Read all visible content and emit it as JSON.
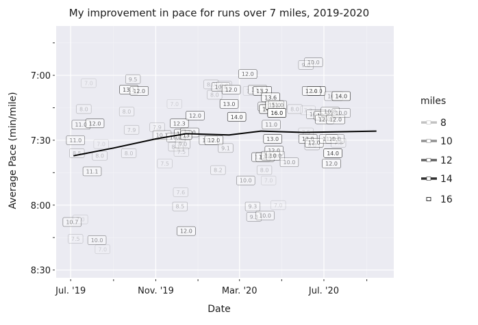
{
  "chart_data": {
    "type": "scatter",
    "title": "My improvement in pace for runs over 7 miles, 2019-2020",
    "xlabel": "Date",
    "ylabel": "Average Pace (min/mile)",
    "x_ticks": [
      {
        "date": "2019-07-01",
        "label": "Jul. '19"
      },
      {
        "date": "2019-11-01",
        "label": "Nov. '19"
      },
      {
        "date": "2020-03-01",
        "label": "Mar. '20"
      },
      {
        "date": "2020-07-01",
        "label": "Jul. '20"
      }
    ],
    "x_minor_ticks": [
      "2019-09-01",
      "2020-01-01",
      "2020-05-01",
      "2020-09-01"
    ],
    "xlim": [
      "2019-06-10",
      "2020-10-10"
    ],
    "y_ticks": [
      {
        "value": 7.0,
        "label": "7:00"
      },
      {
        "value": 7.5,
        "label": "7:30"
      },
      {
        "value": 8.0,
        "label": "8:00"
      },
      {
        "value": 8.5,
        "label": "8:30"
      }
    ],
    "y_minor_ticks": [
      6.75,
      7.25,
      7.75,
      8.25
    ],
    "ylim": [
      8.56,
      6.62
    ],
    "y_reversed": true,
    "grid": true,
    "legend": {
      "title": "miles",
      "position": "right",
      "entries": [
        {
          "label": "8",
          "value": 8
        },
        {
          "label": "10",
          "value": 10
        },
        {
          "label": "12",
          "value": 12
        },
        {
          "label": "14",
          "value": 14
        },
        {
          "label": "16",
          "value": 16
        }
      ]
    },
    "trend_line": [
      {
        "date": "2019-07-05",
        "pace": 7.62
      },
      {
        "date": "2019-09-01",
        "pace": 7.56
      },
      {
        "date": "2019-11-01",
        "pace": 7.49
      },
      {
        "date": "2019-12-15",
        "pace": 7.45
      },
      {
        "date": "2020-02-15",
        "pace": 7.46
      },
      {
        "date": "2020-04-01",
        "pace": 7.43
      },
      {
        "date": "2020-06-01",
        "pace": 7.44
      },
      {
        "date": "2020-09-15",
        "pace": 7.43
      }
    ],
    "points": [
      {
        "date": "2019-07-08",
        "pace": 7.5,
        "miles": 11.0,
        "label": "11.0"
      },
      {
        "date": "2019-07-10",
        "pace": 7.6,
        "miles": 8.5,
        "label": "8.5"
      },
      {
        "date": "2019-07-16",
        "pace": 7.38,
        "miles": 11.0,
        "label": "11.0"
      },
      {
        "date": "2019-07-20",
        "pace": 7.26,
        "miles": 8.0,
        "label": "8.0"
      },
      {
        "date": "2019-07-27",
        "pace": 7.06,
        "miles": 7.0,
        "label": "7.0"
      },
      {
        "date": "2019-08-05",
        "pace": 7.37,
        "miles": 12.0,
        "label": "12.0"
      },
      {
        "date": "2019-08-01",
        "pace": 7.74,
        "miles": 11.1,
        "label": "11.1"
      },
      {
        "date": "2019-08-12",
        "pace": 7.62,
        "miles": 8.0,
        "label": "8.0"
      },
      {
        "date": "2019-08-14",
        "pace": 7.53,
        "miles": 7.0,
        "label": "7.0"
      },
      {
        "date": "2019-07-03",
        "pace": 8.13,
        "miles": 10.7,
        "label": "10.7"
      },
      {
        "date": "2019-07-08",
        "pace": 8.26,
        "miles": 7.5,
        "label": "7.5"
      },
      {
        "date": "2019-07-15",
        "pace": 8.11,
        "miles": 7.0,
        "label": "7.0"
      },
      {
        "date": "2019-08-08",
        "pace": 8.27,
        "miles": 10.0,
        "label": "10.0"
      },
      {
        "date": "2019-08-16",
        "pace": 8.34,
        "miles": 7.0,
        "label": "7.0"
      },
      {
        "date": "2019-09-23",
        "pace": 7.11,
        "miles": 13.1,
        "label": "13.1"
      },
      {
        "date": "2019-09-29",
        "pace": 7.03,
        "miles": 9.5,
        "label": "9.5"
      },
      {
        "date": "2019-10-08",
        "pace": 7.12,
        "miles": 12.0,
        "label": "12.0"
      },
      {
        "date": "2019-09-20",
        "pace": 7.28,
        "miles": 8.0,
        "label": "8.0"
      },
      {
        "date": "2019-09-27",
        "pace": 7.42,
        "miles": 7.9,
        "label": "7.9"
      },
      {
        "date": "2019-09-23",
        "pace": 7.6,
        "miles": 8.0,
        "label": "8.0"
      },
      {
        "date": "2019-11-03",
        "pace": 7.4,
        "miles": 7.9,
        "label": "7.9"
      },
      {
        "date": "2019-11-10",
        "pace": 7.46,
        "miles": 10.1,
        "label": "10.1"
      },
      {
        "date": "2019-11-14",
        "pace": 7.68,
        "miles": 7.5,
        "label": "7.5"
      },
      {
        "date": "2019-11-28",
        "pace": 7.22,
        "miles": 7.0,
        "label": "7.0"
      },
      {
        "date": "2019-12-05",
        "pace": 7.37,
        "miles": 12.3,
        "label": "12.3"
      },
      {
        "date": "2019-12-06",
        "pace": 7.45,
        "miles": 13.0,
        "label": "13"
      },
      {
        "date": "2019-11-30",
        "pace": 7.48,
        "miles": 10.0,
        "label": "10.0"
      },
      {
        "date": "2019-11-30",
        "pace": 7.55,
        "miles": 8.1,
        "label": "8.1"
      },
      {
        "date": "2019-12-10",
        "pace": 7.53,
        "miles": 9.0,
        "label": "9.0"
      },
      {
        "date": "2019-12-08",
        "pace": 7.59,
        "miles": 7.5,
        "label": "7.5"
      },
      {
        "date": "2019-12-20",
        "pace": 7.44,
        "miles": 12.0,
        "label": "12.0"
      },
      {
        "date": "2019-12-28",
        "pace": 7.31,
        "miles": 12.0,
        "label": "12.0"
      },
      {
        "date": "2019-12-15",
        "pace": 7.46,
        "miles": 13.0,
        "label": "13"
      },
      {
        "date": "2019-12-07",
        "pace": 7.9,
        "miles": 7.6,
        "label": "7.6"
      },
      {
        "date": "2019-12-06",
        "pace": 8.01,
        "miles": 8.5,
        "label": "8.5"
      },
      {
        "date": "2019-12-15",
        "pace": 8.2,
        "miles": 12.0,
        "label": "12.0"
      },
      {
        "date": "2020-01-16",
        "pace": 7.5,
        "miles": 11.0,
        "label": "11.0"
      },
      {
        "date": "2020-01-24",
        "pace": 7.5,
        "miles": 12.0,
        "label": "12.0"
      },
      {
        "date": "2020-01-20",
        "pace": 7.07,
        "miles": 8.0,
        "label": "8.0"
      },
      {
        "date": "2020-01-25",
        "pace": 7.15,
        "miles": 8.0,
        "label": "8.0"
      },
      {
        "date": "2020-02-03",
        "pace": 7.09,
        "miles": 10.8,
        "label": "10.8"
      },
      {
        "date": "2020-02-08",
        "pace": 7.08,
        "miles": 8.0,
        "label": "8.0"
      },
      {
        "date": "2020-02-18",
        "pace": 7.11,
        "miles": 12.0,
        "label": "12.0"
      },
      {
        "date": "2020-02-15",
        "pace": 7.22,
        "miles": 13.0,
        "label": "13.0"
      },
      {
        "date": "2020-02-10",
        "pace": 7.56,
        "miles": 9.1,
        "label": "9.1"
      },
      {
        "date": "2020-01-30",
        "pace": 7.73,
        "miles": 8.2,
        "label": "8.2"
      },
      {
        "date": "2020-02-26",
        "pace": 7.32,
        "miles": 14.0,
        "label": "14.0"
      },
      {
        "date": "2020-03-13",
        "pace": 6.99,
        "miles": 12.0,
        "label": "12.0"
      },
      {
        "date": "2020-03-10",
        "pace": 7.81,
        "miles": 10.0,
        "label": "10.0"
      },
      {
        "date": "2020-03-17",
        "pace": 7.12,
        "miles": 7.0,
        "label": "7.0"
      },
      {
        "date": "2020-03-27",
        "pace": 7.11,
        "miles": 11.0,
        "label": "11.0"
      },
      {
        "date": "2020-04-03",
        "pace": 7.12,
        "miles": 13.2,
        "label": "13.2"
      },
      {
        "date": "2020-03-20",
        "pace": 8.01,
        "miles": 9.3,
        "label": "9.3"
      },
      {
        "date": "2020-03-22",
        "pace": 8.09,
        "miles": 9.3,
        "label": "9.3"
      },
      {
        "date": "2020-04-01",
        "pace": 7.63,
        "miles": 12.0,
        "label": "12.0"
      },
      {
        "date": "2020-04-07",
        "pace": 7.63,
        "miles": 12.0,
        "label": "12.0"
      },
      {
        "date": "2020-04-06",
        "pace": 7.73,
        "miles": 8.0,
        "label": "8.0"
      },
      {
        "date": "2020-04-12",
        "pace": 7.81,
        "miles": 7.0,
        "label": "7.0"
      },
      {
        "date": "2020-04-07",
        "pace": 8.08,
        "miles": 10.0,
        "label": "10.0"
      },
      {
        "date": "2020-04-10",
        "pace": 7.24,
        "miles": 11.0,
        "label": "11.0"
      },
      {
        "date": "2020-04-15",
        "pace": 7.17,
        "miles": 13.6,
        "label": "13.6"
      },
      {
        "date": "2020-04-12",
        "pace": 7.26,
        "miles": 14.0,
        "label": "14.0"
      },
      {
        "date": "2020-04-21",
        "pace": 7.23,
        "miles": 15.0,
        "label": "15.0"
      },
      {
        "date": "2020-04-25",
        "pace": 7.23,
        "miles": 11.0,
        "label": "11.0"
      },
      {
        "date": "2020-04-24",
        "pace": 7.29,
        "miles": 16.0,
        "label": "16.0"
      },
      {
        "date": "2020-04-16",
        "pace": 7.38,
        "miles": 11.0,
        "label": "11.0"
      },
      {
        "date": "2020-04-18",
        "pace": 7.49,
        "miles": 13.0,
        "label": "13.0"
      },
      {
        "date": "2020-04-20",
        "pace": 7.58,
        "miles": 12.0,
        "label": "12.0"
      },
      {
        "date": "2020-04-15",
        "pace": 7.62,
        "miles": 12.0,
        "label": "12.0"
      },
      {
        "date": "2020-04-22",
        "pace": 7.62,
        "miles": 10.0,
        "label": "10.0"
      },
      {
        "date": "2020-04-26",
        "pace": 8.0,
        "miles": 7.0,
        "label": "7.0"
      },
      {
        "date": "2020-05-20",
        "pace": 7.26,
        "miles": 8.0,
        "label": "8.0"
      },
      {
        "date": "2020-05-12",
        "pace": 7.67,
        "miles": 10.0,
        "label": "10.0"
      },
      {
        "date": "2020-06-05",
        "pace": 6.92,
        "miles": 9.0,
        "label": "9.0"
      },
      {
        "date": "2020-06-16",
        "pace": 6.9,
        "miles": 10.0,
        "label": "10.0"
      },
      {
        "date": "2020-06-20",
        "pace": 7.12,
        "miles": 14.0,
        "label": "14.0"
      },
      {
        "date": "2020-06-13",
        "pace": 7.12,
        "miles": 12.0,
        "label": "12.0"
      },
      {
        "date": "2020-06-08",
        "pace": 7.27,
        "miles": 7.3,
        "label": "7.3"
      },
      {
        "date": "2020-06-05",
        "pace": 7.44,
        "miles": 7.5,
        "label": "7.5"
      },
      {
        "date": "2020-06-08",
        "pace": 7.49,
        "miles": 12.0,
        "label": "12.0"
      },
      {
        "date": "2020-06-19",
        "pace": 7.3,
        "miles": 10.0,
        "label": "10.0"
      },
      {
        "date": "2020-06-14",
        "pace": 7.54,
        "miles": 9.0,
        "label": "9.0"
      },
      {
        "date": "2020-06-17",
        "pace": 7.52,
        "miles": 12.0,
        "label": "12.0"
      },
      {
        "date": "2020-06-30",
        "pace": 7.31,
        "miles": 12.0,
        "label": "12.0"
      },
      {
        "date": "2020-07-02",
        "pace": 7.34,
        "miles": 12.0,
        "label": "12.0"
      },
      {
        "date": "2020-07-10",
        "pace": 7.28,
        "miles": 10.8,
        "label": "10.8"
      },
      {
        "date": "2020-07-08",
        "pace": 7.49,
        "miles": 11.0,
        "label": "11.0"
      },
      {
        "date": "2020-07-15",
        "pace": 7.16,
        "miles": 10.0,
        "label": "10.0"
      },
      {
        "date": "2020-07-18",
        "pace": 7.34,
        "miles": 12.0,
        "label": "12.0"
      },
      {
        "date": "2020-07-17",
        "pace": 7.49,
        "miles": 10.0,
        "label": "10.0"
      },
      {
        "date": "2020-07-22",
        "pace": 7.52,
        "miles": 7.8,
        "label": "7.8"
      },
      {
        "date": "2020-07-14",
        "pace": 7.6,
        "miles": 14.0,
        "label": "14.0"
      },
      {
        "date": "2020-07-12",
        "pace": 7.68,
        "miles": 12.0,
        "label": "12.0"
      },
      {
        "date": "2020-07-26",
        "pace": 7.16,
        "miles": 14.0,
        "label": "14.0"
      },
      {
        "date": "2020-07-26",
        "pace": 7.29,
        "miles": 10.0,
        "label": "10.0"
      }
    ]
  }
}
